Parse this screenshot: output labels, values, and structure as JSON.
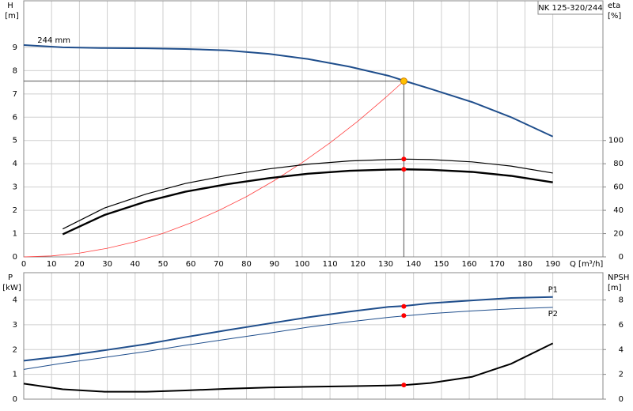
{
  "chart_data": [
    {
      "type": "line",
      "title": "NK 125-320/244",
      "y_label": "H",
      "y_unit": "[m]",
      "y2_label": "eta",
      "y2_unit": "[%]",
      "x_label": "Q [m³/h]",
      "xlim": [
        0,
        208
      ],
      "xticks": [
        0,
        10,
        20,
        30,
        40,
        50,
        60,
        70,
        80,
        90,
        100,
        110,
        120,
        130,
        140,
        150,
        160,
        170,
        180,
        190
      ],
      "ylim": [
        0,
        11
      ],
      "yticks": [
        0,
        1,
        2,
        3,
        4,
        5,
        6,
        7,
        8,
        9
      ],
      "y2lim": [
        0,
        220
      ],
      "y2ticks": [
        0,
        20,
        40,
        60,
        80,
        100
      ],
      "grid": true,
      "series": [
        {
          "name": "244 mm",
          "color": "#1f4e8c",
          "width": 2,
          "x": [
            0,
            14,
            29,
            44,
            58,
            73,
            88,
            102,
            117,
            131,
            137,
            146,
            161,
            175,
            190
          ],
          "values": [
            9.1,
            9.0,
            8.97,
            8.96,
            8.93,
            8.87,
            8.72,
            8.5,
            8.17,
            7.78,
            7.55,
            7.22,
            6.65,
            6.0,
            5.17
          ]
        },
        {
          "color": "#ff4040",
          "width": 0.8,
          "x": [
            0,
            10,
            20,
            30,
            40,
            50,
            60,
            70,
            80,
            90,
            100,
            110,
            120,
            130,
            136.5
          ],
          "values": [
            0,
            0.04,
            0.16,
            0.37,
            0.65,
            1.01,
            1.46,
            1.99,
            2.59,
            3.28,
            4.05,
            4.9,
            5.83,
            6.85,
            7.55
          ]
        },
        {
          "color": "#000000",
          "width": 1.2,
          "axis": "y2",
          "x": [
            14,
            29,
            44,
            58,
            73,
            88,
            102,
            117,
            131,
            137,
            146,
            161,
            175,
            190
          ],
          "values": [
            24,
            42,
            54,
            63,
            70,
            75.6,
            79.6,
            82.4,
            83.6,
            84,
            83.6,
            81.6,
            78,
            72
          ]
        },
        {
          "color": "#000000",
          "width": 2.4,
          "axis": "y2",
          "x": [
            14,
            29,
            44,
            58,
            73,
            88,
            102,
            117,
            131,
            137,
            146,
            161,
            175,
            190
          ],
          "values": [
            19.4,
            36,
            47.6,
            56,
            62.4,
            67.6,
            71.4,
            74,
            75,
            75.2,
            74.8,
            73,
            69.6,
            64
          ]
        }
      ],
      "points": [
        {
          "x": 136.5,
          "value": 7.55,
          "color": "#ffc000",
          "guides": true
        },
        {
          "x": 136.5,
          "value": 84,
          "color": "#ff0000",
          "axis": "y2"
        },
        {
          "x": 136.5,
          "value": 75.2,
          "color": "#ff0000",
          "axis": "y2"
        }
      ]
    },
    {
      "type": "line",
      "y_label": "P",
      "y_unit": "[kW]",
      "y2_label": "NPSH",
      "y2_unit": "[m]",
      "xlim": [
        0,
        208
      ],
      "ylim": [
        0,
        5.1
      ],
      "yticks": [
        0,
        1,
        2,
        3,
        4
      ],
      "y2lim": [
        0,
        10.2
      ],
      "y2ticks": [
        0,
        2,
        4,
        6,
        8
      ],
      "grid": true,
      "series": [
        {
          "name": "P1",
          "color": "#1f4e8c",
          "width": 2,
          "x": [
            0,
            14,
            29,
            44,
            58,
            73,
            88,
            102,
            117,
            131,
            137,
            146,
            161,
            175,
            190
          ],
          "values": [
            1.55,
            1.73,
            1.97,
            2.22,
            2.5,
            2.78,
            3.05,
            3.3,
            3.53,
            3.72,
            3.76,
            3.87,
            3.98,
            4.08,
            4.12
          ]
        },
        {
          "name": "P2",
          "color": "#1f4e8c",
          "width": 1,
          "x": [
            0,
            14,
            29,
            44,
            58,
            73,
            88,
            102,
            117,
            131,
            137,
            146,
            161,
            175,
            190
          ],
          "values": [
            1.2,
            1.45,
            1.68,
            1.92,
            2.17,
            2.42,
            2.66,
            2.9,
            3.12,
            3.3,
            3.36,
            3.45,
            3.56,
            3.64,
            3.7
          ]
        },
        {
          "color": "#000000",
          "width": 2,
          "axis": "y2",
          "x": [
            0,
            14,
            29,
            44,
            58,
            73,
            88,
            102,
            117,
            131,
            137,
            146,
            161,
            175,
            190
          ],
          "values": [
            1.25,
            0.8,
            0.6,
            0.6,
            0.7,
            0.84,
            0.94,
            1.0,
            1.04,
            1.1,
            1.14,
            1.3,
            1.8,
            2.85,
            4.5
          ]
        }
      ],
      "points": [
        {
          "x": 136.5,
          "value": 3.74,
          "color": "#ff0000"
        },
        {
          "x": 136.5,
          "value": 3.37,
          "color": "#ff0000"
        },
        {
          "x": 136.5,
          "value": 1.14,
          "color": "#ff0000",
          "axis": "y2"
        }
      ]
    }
  ]
}
